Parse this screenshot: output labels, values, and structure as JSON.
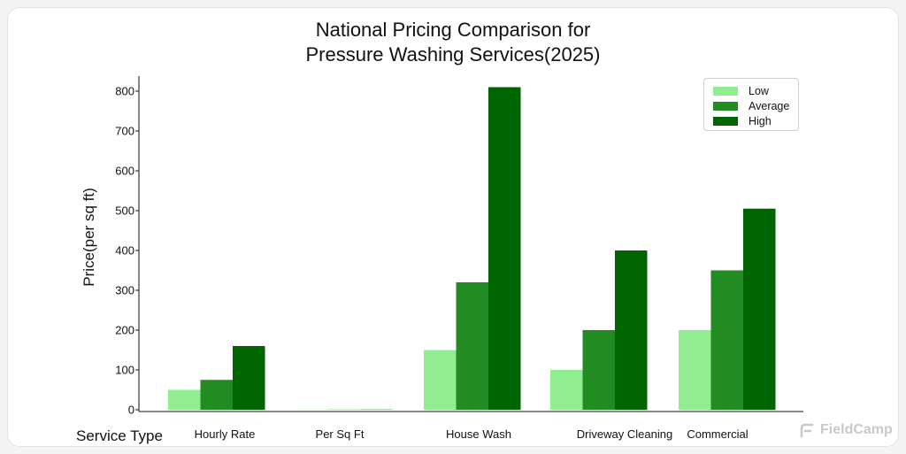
{
  "brand": {
    "name": "FieldCamp",
    "icon": "fieldcamp-logo-icon"
  },
  "chart_data": {
    "type": "bar",
    "title": [
      "National Pricing Comparison for",
      "Pressure Washing Services(2025)"
    ],
    "xlabel": "Service Type",
    "ylabel": "Price(per sq ft)",
    "categories": [
      "Hourly Rate",
      "Per Sq Ft",
      "House Wash",
      "Driveway Cleaning",
      "Commercial"
    ],
    "series": [
      {
        "name": "Low",
        "color": "#90ee90",
        "values": [
          50,
          0.4,
          150,
          100,
          200
        ]
      },
      {
        "name": "Average",
        "color": "#228b22",
        "values": [
          75,
          0.5,
          320,
          200,
          350
        ]
      },
      {
        "name": "High",
        "color": "#006400",
        "values": [
          160,
          0.6,
          810,
          400,
          505
        ]
      }
    ],
    "ylim": [
      0,
      850
    ],
    "yticks": [
      0,
      100,
      200,
      300,
      400,
      500,
      600,
      700,
      800
    ],
    "legend": "top-right",
    "grid": false
  }
}
